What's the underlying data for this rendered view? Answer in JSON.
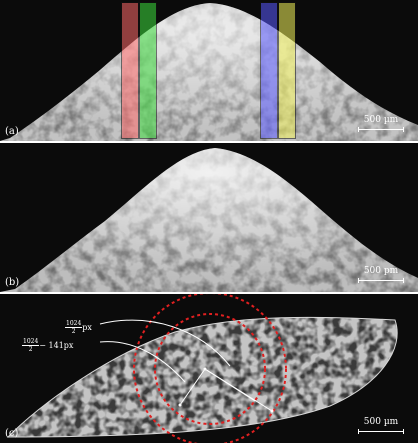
{
  "panels": [
    {
      "label": "(a)",
      "scalebar": "500 µm"
    },
    {
      "label": "(b)",
      "scalebar": "500 pm"
    },
    {
      "label": "(c)",
      "scalebar": "500 µm"
    }
  ],
  "roi_colors": [
    "#ff6b6b",
    "#3ddc3d",
    "#5a5aff",
    "#f2f25a"
  ],
  "circle_color": "#e02020",
  "annotations": {
    "first": {
      "numerator": "1024",
      "denominator": "2",
      "suffix": "px"
    },
    "second": {
      "numerator": "1024",
      "denominator": "2",
      "suffix": "− 141px"
    }
  }
}
